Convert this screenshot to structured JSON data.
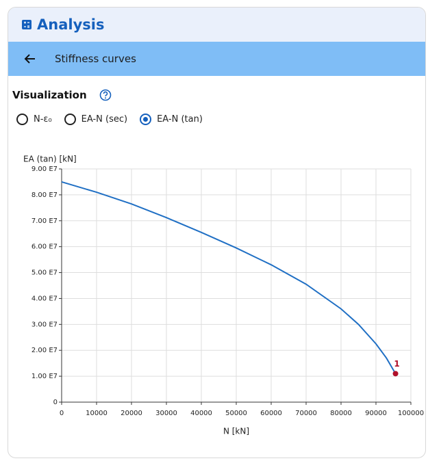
{
  "header": {
    "title": "Analysis"
  },
  "toolbar": {
    "title": "Stiffness curves"
  },
  "section": {
    "title": "Visualization"
  },
  "radios": {
    "options": [
      "N-ε₀",
      "EA-N (sec)",
      "EA-N (tan)"
    ],
    "selected": 2
  },
  "chart_data": {
    "type": "line",
    "ylabel": "EA (tan) [kN]",
    "xlabel": "N [kN]",
    "x": [
      0,
      10000,
      20000,
      30000,
      40000,
      50000,
      60000,
      70000,
      80000,
      85000,
      90000,
      93000,
      95600
    ],
    "series": [
      {
        "name": "EA (tan)",
        "color": "#1f6fc4",
        "values": [
          85000000,
          81000000,
          76500000,
          71200000,
          65500000,
          59500000,
          53000000,
          45500000,
          36000000,
          30000000,
          22500000,
          17000000,
          11000000
        ]
      }
    ],
    "markers": [
      {
        "label": "1",
        "x": 95600,
        "y": 11000000,
        "color": "#b0102a"
      }
    ],
    "xlim": [
      0,
      100000
    ],
    "xticks": [
      0,
      10000,
      20000,
      30000,
      40000,
      50000,
      60000,
      70000,
      80000,
      90000,
      100000
    ],
    "ylim": [
      0,
      90000000
    ],
    "yticks": [
      0,
      {
        "value": 10000000,
        "label": "1.00 E7"
      },
      {
        "value": 20000000,
        "label": "2.00 E7"
      },
      {
        "value": 30000000,
        "label": "3.00 E7"
      },
      {
        "value": 40000000,
        "label": "4.00 E7"
      },
      {
        "value": 50000000,
        "label": "5.00 E7"
      },
      {
        "value": 60000000,
        "label": "6.00 E7"
      },
      {
        "value": 70000000,
        "label": "7.00 E7"
      },
      {
        "value": 80000000,
        "label": "8.00 E7"
      },
      {
        "value": 90000000,
        "label": "9.00 E7"
      }
    ],
    "grid": true
  }
}
